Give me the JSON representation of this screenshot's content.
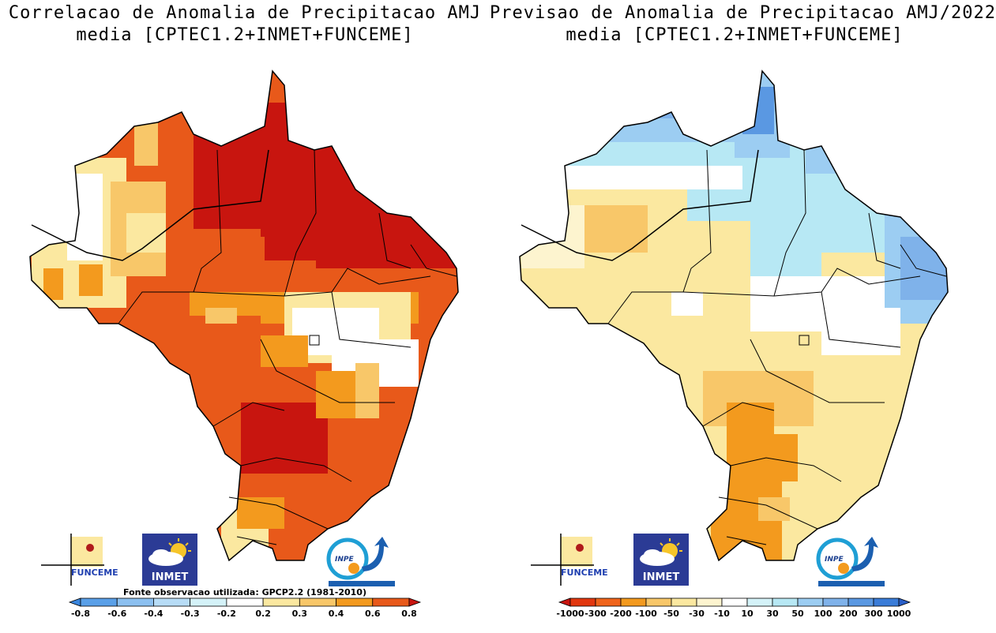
{
  "left_panel": {
    "title_line1": "Correlacao de Anomalia de Precipitacao AMJ",
    "title_line2": "media [CPTEC1.2+INMET+FUNCEME]",
    "source_note": "Fonte observacao utilizada: GPCP2.2 (1981-2010)",
    "colorbar": {
      "labels": [
        "-0.8",
        "-0.6",
        "-0.4",
        "-0.3",
        "-0.2",
        "0.2",
        "0.3",
        "0.4",
        "0.6",
        "0.8"
      ],
      "colors": [
        "#3a86de",
        "#5aa0e8",
        "#8cc0f0",
        "#b7dcf6",
        "#d4f2f8",
        "#ffffff",
        "#fbe8a0",
        "#f8c769",
        "#f39a1e",
        "#e8591a",
        "#c8150f"
      ]
    }
  },
  "right_panel": {
    "title_line1": "Previsao de Anomalia de Precipitacao AMJ/2022",
    "title_line2": "media [CPTEC1.2+INMET+FUNCEME]",
    "colorbar": {
      "labels": [
        "-1000",
        "-300",
        "-200",
        "-100",
        "-50",
        "-30",
        "-10",
        "10",
        "30",
        "50",
        "100",
        "200",
        "300",
        "1000"
      ],
      "colors": [
        "#c8150f",
        "#e2370f",
        "#f0641b",
        "#f39a1e",
        "#f8c769",
        "#fbe8a0",
        "#fdf4cf",
        "#ffffff",
        "#d4f2f8",
        "#b7e8f4",
        "#9ccdf2",
        "#7fb2ea",
        "#5a98e2",
        "#3a7cd8",
        "#2a5fc8"
      ]
    }
  },
  "logos": {
    "funceme": "FUNCEME",
    "inmet": "INMET",
    "inpe": "INPE"
  }
}
